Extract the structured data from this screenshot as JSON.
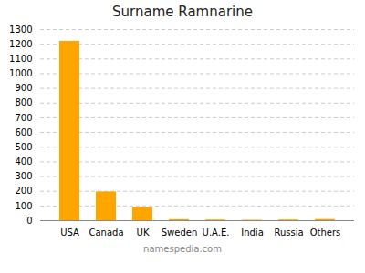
{
  "chart_data": {
    "type": "bar",
    "title": "Surname Ramnarine",
    "categories": [
      "USA",
      "Canada",
      "UK",
      "Sweden",
      "U.A.E.",
      "India",
      "Russia",
      "Others"
    ],
    "values": [
      1220,
      196,
      90,
      7,
      5,
      3,
      5,
      8
    ],
    "color": "#FFA500",
    "ylim": [
      0,
      1300
    ],
    "yticks": [
      0,
      100,
      200,
      300,
      400,
      500,
      600,
      700,
      800,
      900,
      1000,
      1100,
      1200,
      1300
    ],
    "grid": true,
    "annotations": [
      "namespedia.com"
    ]
  }
}
